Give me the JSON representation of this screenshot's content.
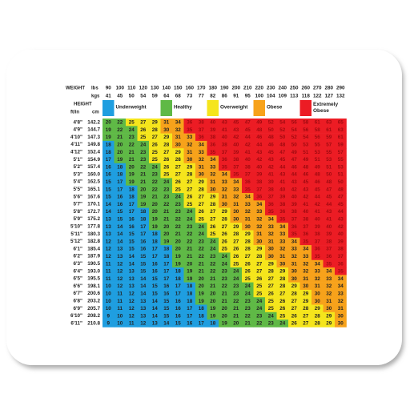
{
  "header": {
    "weight": "WEIGHT",
    "lbs": "lbs",
    "kgs": "kgs",
    "height": "HEIGHT",
    "ftin": "ft/in",
    "cm": "cm"
  },
  "lbs": [
    90,
    100,
    110,
    120,
    130,
    140,
    150,
    160,
    170,
    180,
    190,
    200,
    210,
    220,
    230,
    240,
    250,
    260,
    270,
    280,
    290
  ],
  "kgs": [
    41,
    45,
    50,
    54,
    59,
    64,
    68,
    73,
    77,
    82,
    86,
    91,
    95,
    100,
    104,
    109,
    113,
    118,
    122,
    127,
    132
  ],
  "legend": [
    {
      "label": "Underweight",
      "color": "#1f9ee0"
    },
    {
      "label": "Healthy",
      "color": "#5fb946"
    },
    {
      "label": "Overweight",
      "color": "#f5e51c"
    },
    {
      "label": "Obese",
      "color": "#f7a21b"
    },
    {
      "label": "Extremely Obese",
      "color": "#ec1c24"
    }
  ],
  "rows": [
    {
      "ft": "4'8\"",
      "cm": "142.2",
      "bmi": [
        20,
        22,
        25,
        27,
        29,
        31,
        34,
        36,
        38,
        40,
        43,
        45,
        47,
        49,
        52,
        54,
        56,
        58,
        61,
        63,
        65
      ]
    },
    {
      "ft": "4'9\"",
      "cm": "144.7",
      "bmi": [
        19,
        22,
        24,
        26,
        28,
        30,
        32,
        35,
        37,
        39,
        41,
        43,
        45,
        48,
        50,
        52,
        54,
        56,
        58,
        61,
        63
      ]
    },
    {
      "ft": "4'10\"",
      "cm": "147.3",
      "bmi": [
        19,
        21,
        23,
        25,
        27,
        29,
        31,
        33,
        36,
        38,
        40,
        42,
        44,
        46,
        48,
        50,
        52,
        54,
        56,
        59,
        61
      ]
    },
    {
      "ft": "4'11\"",
      "cm": "149.8",
      "bmi": [
        18,
        20,
        22,
        24,
        26,
        28,
        30,
        32,
        34,
        36,
        38,
        40,
        42,
        44,
        46,
        48,
        50,
        53,
        55,
        57,
        59
      ]
    },
    {
      "ft": "4'12\"",
      "cm": "152.4",
      "bmi": [
        18,
        20,
        21,
        23,
        25,
        27,
        29,
        31,
        33,
        35,
        37,
        39,
        41,
        43,
        45,
        47,
        49,
        51,
        53,
        55,
        57
      ]
    },
    {
      "ft": "5'1\"",
      "cm": "154.9",
      "bmi": [
        17,
        19,
        21,
        23,
        25,
        26,
        28,
        30,
        32,
        34,
        36,
        38,
        40,
        42,
        43,
        45,
        47,
        49,
        51,
        53,
        55
      ]
    },
    {
      "ft": "5'2\"",
      "cm": "157.4",
      "bmi": [
        16,
        18,
        20,
        22,
        24,
        26,
        27,
        29,
        31,
        33,
        35,
        37,
        38,
        40,
        42,
        44,
        46,
        48,
        49,
        51,
        53
      ]
    },
    {
      "ft": "5'3\"",
      "cm": "160.0",
      "bmi": [
        16,
        18,
        19,
        21,
        23,
        25,
        27,
        28,
        30,
        32,
        34,
        35,
        37,
        39,
        41,
        43,
        44,
        46,
        48,
        50,
        51
      ]
    },
    {
      "ft": "5'4\"",
      "cm": "162.5",
      "bmi": [
        15,
        17,
        19,
        21,
        22,
        24,
        26,
        27,
        29,
        31,
        33,
        34,
        36,
        38,
        39,
        41,
        43,
        45,
        46,
        48,
        50
      ]
    },
    {
      "ft": "5'5\"",
      "cm": "165.1",
      "bmi": [
        15,
        17,
        18,
        20,
        22,
        23,
        25,
        27,
        28,
        30,
        32,
        33,
        35,
        37,
        38,
        40,
        42,
        43,
        45,
        47,
        48
      ]
    },
    {
      "ft": "5'6\"",
      "cm": "167.6",
      "bmi": [
        15,
        16,
        18,
        19,
        21,
        23,
        24,
        26,
        27,
        29,
        31,
        32,
        34,
        36,
        37,
        39,
        40,
        42,
        44,
        45,
        47
      ]
    },
    {
      "ft": "5'7\"",
      "cm": "170.1",
      "bmi": [
        14,
        16,
        17,
        19,
        20,
        22,
        23,
        25,
        27,
        28,
        30,
        31,
        33,
        34,
        36,
        38,
        39,
        41,
        42,
        44,
        45
      ]
    },
    {
      "ft": "5'8\"",
      "cm": "172.7",
      "bmi": [
        14,
        15,
        17,
        18,
        20,
        21,
        23,
        24,
        26,
        27,
        29,
        30,
        32,
        33,
        35,
        36,
        38,
        40,
        41,
        43,
        44
      ]
    },
    {
      "ft": "5'9\"",
      "cm": "175.2",
      "bmi": [
        13,
        15,
        16,
        18,
        19,
        21,
        22,
        24,
        25,
        27,
        28,
        30,
        31,
        32,
        34,
        35,
        37,
        38,
        40,
        41,
        43
      ]
    },
    {
      "ft": "5'10\"",
      "cm": "177.8",
      "bmi": [
        13,
        14,
        16,
        17,
        19,
        20,
        22,
        23,
        24,
        26,
        27,
        29,
        30,
        32,
        33,
        34,
        36,
        37,
        39,
        40,
        42
      ]
    },
    {
      "ft": "5'11\"",
      "cm": "180.3",
      "bmi": [
        13,
        14,
        15,
        17,
        18,
        20,
        21,
        22,
        24,
        25,
        26,
        28,
        29,
        31,
        32,
        33,
        35,
        36,
        38,
        39,
        40
      ]
    },
    {
      "ft": "5'12\"",
      "cm": "182.8",
      "bmi": [
        12,
        14,
        15,
        16,
        18,
        19,
        20,
        22,
        23,
        24,
        26,
        27,
        28,
        30,
        31,
        33,
        34,
        35,
        37,
        38,
        39
      ]
    },
    {
      "ft": "6'1\"",
      "cm": "185.4",
      "bmi": [
        12,
        13,
        15,
        16,
        17,
        18,
        20,
        21,
        22,
        24,
        25,
        26,
        28,
        29,
        30,
        32,
        33,
        34,
        36,
        37,
        38
      ]
    },
    {
      "ft": "6'2\"",
      "cm": "187.9",
      "bmi": [
        12,
        13,
        14,
        15,
        17,
        18,
        19,
        21,
        22,
        23,
        24,
        26,
        27,
        28,
        30,
        31,
        32,
        33,
        35,
        36,
        37
      ]
    },
    {
      "ft": "6'3\"",
      "cm": "190.5",
      "bmi": [
        11,
        12,
        14,
        15,
        16,
        17,
        19,
        20,
        21,
        22,
        24,
        25,
        26,
        27,
        29,
        30,
        31,
        32,
        34,
        35,
        36
      ]
    },
    {
      "ft": "6'4\"",
      "cm": "193.0",
      "bmi": [
        11,
        12,
        13,
        15,
        16,
        17,
        18,
        19,
        21,
        22,
        23,
        24,
        26,
        27,
        28,
        29,
        30,
        32,
        33,
        34,
        35
      ]
    },
    {
      "ft": "6'5\"",
      "cm": "195.5",
      "bmi": [
        11,
        12,
        13,
        14,
        15,
        17,
        18,
        19,
        20,
        21,
        23,
        24,
        25,
        26,
        27,
        28,
        30,
        31,
        32,
        33,
        34
      ]
    },
    {
      "ft": "6'6\"",
      "cm": "198.1",
      "bmi": [
        10,
        12,
        13,
        14,
        15,
        16,
        17,
        18,
        20,
        21,
        22,
        23,
        24,
        25,
        27,
        28,
        29,
        30,
        31,
        32,
        34
      ]
    },
    {
      "ft": "6'7\"",
      "cm": "200.6",
      "bmi": [
        10,
        11,
        12,
        14,
        15,
        16,
        17,
        18,
        19,
        20,
        21,
        23,
        24,
        25,
        26,
        27,
        28,
        29,
        30,
        32,
        33
      ]
    },
    {
      "ft": "6'8\"",
      "cm": "203.2",
      "bmi": [
        10,
        11,
        12,
        13,
        14,
        15,
        16,
        18,
        19,
        20,
        21,
        22,
        23,
        24,
        25,
        26,
        27,
        29,
        30,
        31,
        32
      ]
    },
    {
      "ft": "6'9\"",
      "cm": "205.7",
      "bmi": [
        10,
        11,
        12,
        13,
        14,
        15,
        16,
        17,
        18,
        19,
        20,
        21,
        23,
        24,
        25,
        26,
        27,
        28,
        29,
        30,
        31
      ]
    },
    {
      "ft": "6'10\"",
      "cm": "208.2",
      "bmi": [
        9,
        10,
        12,
        13,
        14,
        15,
        16,
        17,
        18,
        19,
        20,
        21,
        22,
        23,
        24,
        25,
        26,
        27,
        28,
        29,
        30
      ]
    },
    {
      "ft": "6'11\"",
      "cm": "210.8",
      "bmi": [
        9,
        10,
        11,
        12,
        13,
        14,
        15,
        16,
        17,
        18,
        19,
        20,
        21,
        22,
        23,
        24,
        26,
        27,
        28,
        29,
        30
      ]
    }
  ]
}
